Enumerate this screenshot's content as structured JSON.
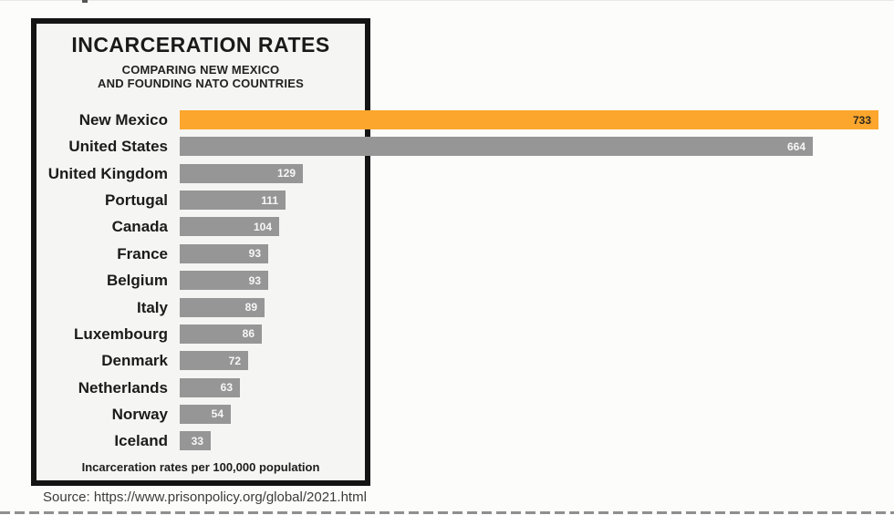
{
  "chart": {
    "title": "INCARCERATION RATES",
    "subtitle_line1": "COMPARING NEW MEXICO",
    "subtitle_line2": "AND FOUNDING NATO COUNTRIES",
    "footnote": "Incarceration rates per 100,000 population"
  },
  "source": {
    "text": "Source: https://www.prisonpolicy.org/global/2021.html"
  },
  "chart_data": {
    "type": "bar",
    "orientation": "horizontal",
    "title": "INCARCERATION RATES",
    "subtitle": "COMPARING NEW MEXICO AND FOUNDING NATO COUNTRIES",
    "note": "Incarceration rates per 100,000 population",
    "source_url": "https://www.prisonpolicy.org/global/2021.html",
    "categories": [
      "New Mexico",
      "United States",
      "United Kingdom",
      "Portugal",
      "Canada",
      "France",
      "Belgium",
      "Italy",
      "Luxembourg",
      "Denmark",
      "Netherlands",
      "Norway",
      "Iceland"
    ],
    "values": [
      733,
      664,
      129,
      111,
      104,
      93,
      93,
      89,
      86,
      72,
      63,
      54,
      33
    ],
    "xlim": [
      0,
      733
    ],
    "grid": false,
    "legend": "none",
    "value_labels_shown": true,
    "highlight_category": "New Mexico",
    "colors": {
      "highlight_bar": "#FCA62D",
      "bar": "#969696",
      "value_label_on_bar": "#F7F7F7",
      "value_label_on_highlight": "#302B1E"
    }
  }
}
